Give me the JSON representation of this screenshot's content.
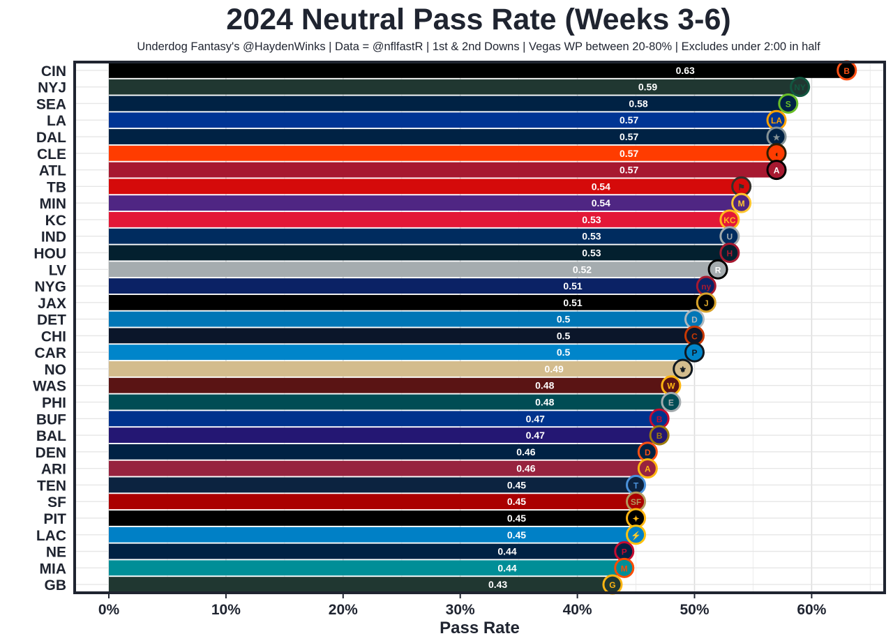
{
  "chart_data": {
    "type": "bar",
    "orientation": "horizontal",
    "title": "2024 Neutral Pass Rate (Weeks 3-6)",
    "subtitle": "Underdog Fantasy's @HaydenWinks | Data = @nflfastR | 1st & 2nd Downs | Vegas WP between 20-80% | Excludes under 2:00 in half",
    "xlabel": "Pass Rate",
    "ylabel": "",
    "xlim": [
      -0.03,
      0.66
    ],
    "x_ticks": [
      0,
      0.1,
      0.2,
      0.3,
      0.4,
      0.5,
      0.6
    ],
    "x_tick_labels": [
      "0%",
      "10%",
      "20%",
      "30%",
      "40%",
      "50%",
      "60%"
    ],
    "grid": true,
    "categories": [
      "CIN",
      "NYJ",
      "SEA",
      "LA",
      "DAL",
      "CLE",
      "ATL",
      "TB",
      "MIN",
      "KC",
      "IND",
      "HOU",
      "LV",
      "NYG",
      "JAX",
      "DET",
      "CHI",
      "CAR",
      "NO",
      "WAS",
      "PHI",
      "BUF",
      "BAL",
      "DEN",
      "ARI",
      "TEN",
      "SF",
      "PIT",
      "LAC",
      "NE",
      "MIA",
      "GB"
    ],
    "values": [
      0.63,
      0.59,
      0.58,
      0.57,
      0.57,
      0.57,
      0.57,
      0.54,
      0.54,
      0.53,
      0.53,
      0.53,
      0.52,
      0.51,
      0.51,
      0.5,
      0.5,
      0.5,
      0.49,
      0.48,
      0.48,
      0.47,
      0.47,
      0.46,
      0.46,
      0.45,
      0.45,
      0.45,
      0.45,
      0.44,
      0.44,
      0.43
    ],
    "value_labels": [
      "0.63",
      "0.59",
      "0.58",
      "0.57",
      "0.57",
      "0.57",
      "0.57",
      "0.54",
      "0.54",
      "0.53",
      "0.53",
      "0.53",
      "0.52",
      "0.51",
      "0.51",
      "0.5",
      "0.5",
      "0.5",
      "0.49",
      "0.48",
      "0.48",
      "0.47",
      "0.47",
      "0.46",
      "0.46",
      "0.45",
      "0.45",
      "0.45",
      "0.45",
      "0.44",
      "0.44",
      "0.43"
    ],
    "bar_colors": [
      "#000000",
      "#203731",
      "#002244",
      "#003594",
      "#002244",
      "#FF3C00",
      "#A71930",
      "#D50A0A",
      "#4F2683",
      "#E31837",
      "#002C5F",
      "#03202F",
      "#A5ACAF",
      "#0B2265",
      "#000000",
      "#0076B6",
      "#0B162A",
      "#0085CA",
      "#D3BC8D",
      "#5A1414",
      "#004C54",
      "#00338D",
      "#241773",
      "#002244",
      "#97233F",
      "#0C2340",
      "#AA0000",
      "#000000",
      "#0080C6",
      "#002244",
      "#008E97",
      "#203731"
    ],
    "logo_colors": [
      "#FB4F14",
      "#125740",
      "#69BE28",
      "#FFA300",
      "#869397",
      "#311D00",
      "#000000",
      "#34302B",
      "#FFC62F",
      "#FFB81C",
      "#A2AAAD",
      "#A71930",
      "#000000",
      "#A71930",
      "#D7A22A",
      "#B0B7BC",
      "#C83803",
      "#101820",
      "#101820",
      "#FFB612",
      "#A5ACAF",
      "#C60C30",
      "#9E7C0C",
      "#FB4F14",
      "#FFB612",
      "#4B92DB",
      "#B3995D",
      "#FFB612",
      "#FFC20E",
      "#C60C30",
      "#FC4C02",
      "#FFB612"
    ],
    "logo_glyphs": [
      "B",
      "NY",
      "S",
      "LA",
      "★",
      "◖",
      "A",
      "⚑",
      "M",
      "KC",
      "U",
      "H",
      "R",
      "ny",
      "J",
      "D",
      "C",
      "P",
      "⚜",
      "W",
      "E",
      "B",
      "B",
      "D",
      "A",
      "T",
      "SF",
      "✦",
      "⚡",
      "P",
      "M",
      "G"
    ]
  }
}
